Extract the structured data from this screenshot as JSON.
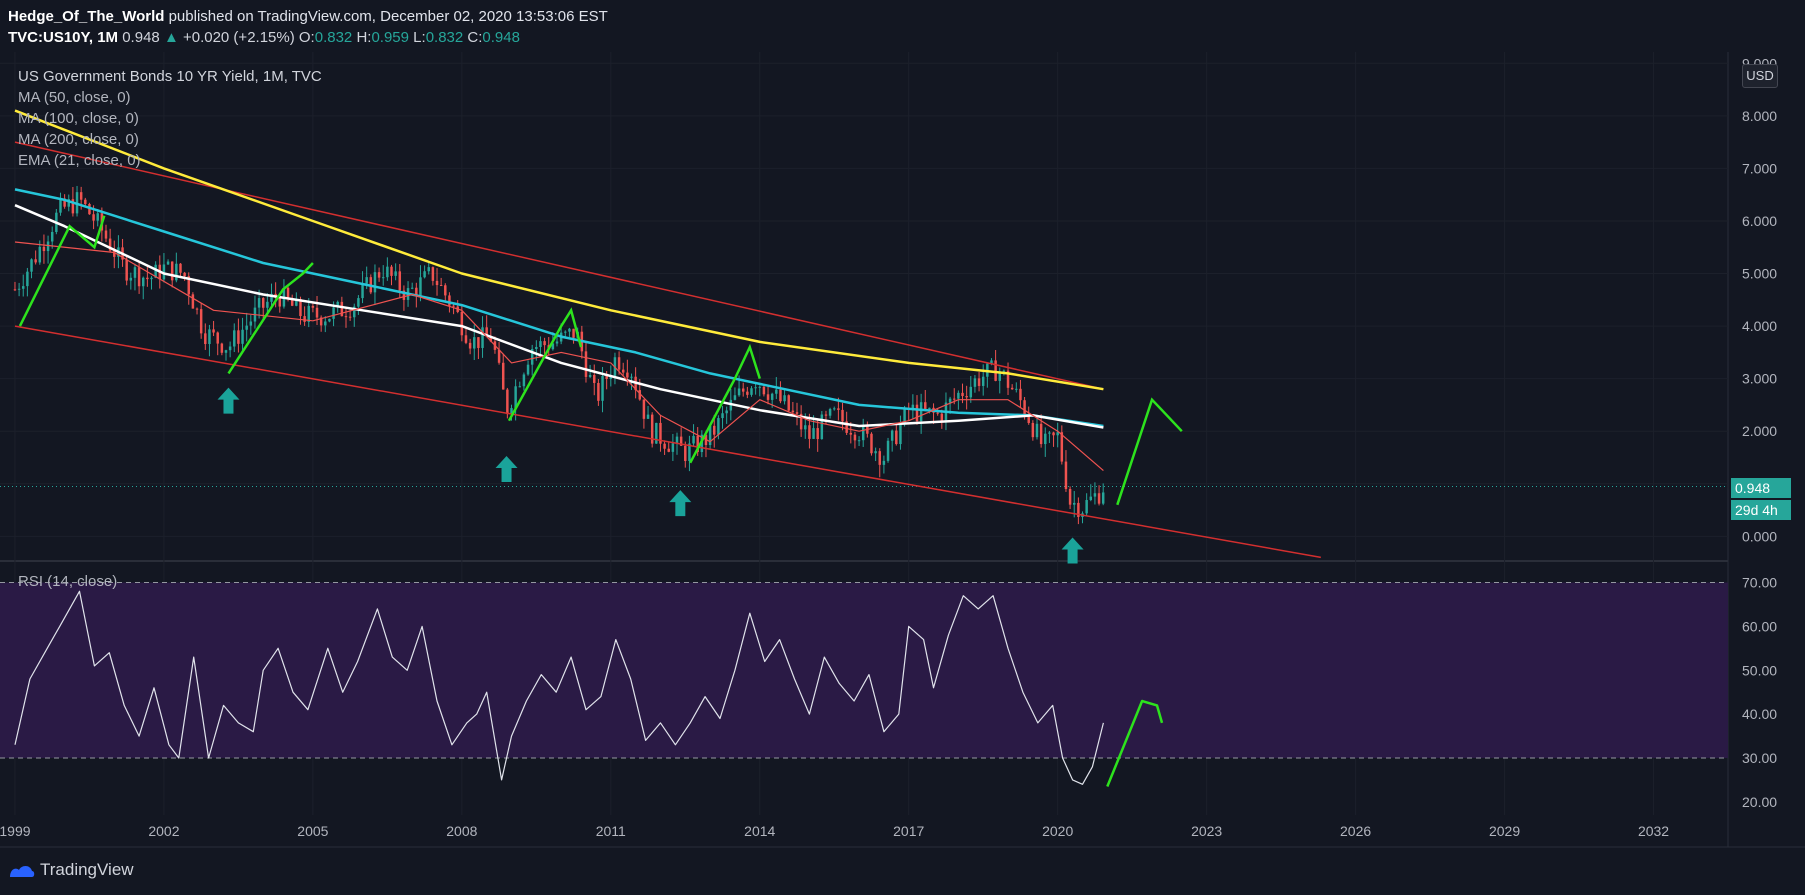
{
  "header": {
    "author": "Hedge_Of_The_World",
    "published": "published on TradingView.com, December 02, 2020 13:53:06 EST",
    "symbol": "TVC:US10Y, 1M",
    "last": "0.948",
    "arrow": "▲",
    "change": "+0.020 (+2.15%)",
    "o_label": "O:",
    "o_value": "0.832",
    "h_label": "H:",
    "h_value": "0.959",
    "l_label": "L:",
    "l_value": "0.832",
    "c_label": "C:",
    "c_value": "0.948"
  },
  "legend": {
    "title": "US Government Bonds 10 YR Yield, 1M, TVC",
    "ma50": "MA (50, close, 0)",
    "ma100": "MA (100, close, 0)",
    "ma200": "MA (200, close, 0)",
    "ema21": "EMA (21, close, 0)"
  },
  "badges": {
    "currency": "USD",
    "price": "0.948",
    "countdown": "29d 4h"
  },
  "rsi_label": "RSI (14, close)",
  "footer": {
    "brand": "TradingView"
  },
  "colors": {
    "background": "#131722",
    "up": "#26a69a",
    "down": "#ef5350",
    "ma50": "#ef5350",
    "ma100": "#ffffff",
    "ma200": "#ffeb3b",
    "ema21": "#26c6da",
    "channel": "#d32f2f",
    "annotation": "#2de31d",
    "rsi_band": "#2a1a45"
  },
  "chart_data": [
    {
      "type": "candlestick",
      "title": "US Government Bonds 10 YR Yield, 1M, TVC",
      "x_tick_labels": [
        "1999",
        "2002",
        "2005",
        "2008",
        "2011",
        "2014",
        "2017",
        "2020",
        "2023",
        "2026",
        "2029",
        "2032"
      ],
      "x_ticks": [
        1999,
        2002,
        2005,
        2008,
        2011,
        2014,
        2017,
        2020,
        2023,
        2026,
        2029,
        2032
      ],
      "y_tick_labels": [
        "0.000",
        "1.000",
        "2.000",
        "3.000",
        "4.000",
        "5.000",
        "6.000",
        "7.000",
        "8.000",
        "9.000"
      ],
      "y_ticks": [
        0,
        1,
        2,
        3,
        4,
        5,
        6,
        7,
        8,
        9
      ],
      "xlim": [
        1998.9,
        2033.5
      ],
      "ylim": [
        -0.45,
        9.1
      ],
      "close_path": [
        [
          1999.0,
          4.7
        ],
        [
          1999.4,
          5.3
        ],
        [
          1999.9,
          6.2
        ],
        [
          2000.3,
          6.4
        ],
        [
          2000.7,
          5.9
        ],
        [
          2001.2,
          5.1
        ],
        [
          2001.7,
          4.9
        ],
        [
          2002.0,
          5.1
        ],
        [
          2002.4,
          5.0
        ],
        [
          2002.8,
          3.9
        ],
        [
          2003.3,
          3.6
        ],
        [
          2003.9,
          4.3
        ],
        [
          2004.3,
          4.6
        ],
        [
          2004.8,
          4.2
        ],
        [
          2005.3,
          4.2
        ],
        [
          2005.8,
          4.4
        ],
        [
          2006.4,
          5.1
        ],
        [
          2006.9,
          4.6
        ],
        [
          2007.4,
          5.0
        ],
        [
          2007.8,
          4.4
        ],
        [
          2008.2,
          3.7
        ],
        [
          2008.6,
          3.8
        ],
        [
          2008.9,
          2.4
        ],
        [
          2009.4,
          3.6
        ],
        [
          2009.9,
          3.7
        ],
        [
          2010.3,
          3.9
        ],
        [
          2010.7,
          2.6
        ],
        [
          2011.1,
          3.4
        ],
        [
          2011.4,
          3.2
        ],
        [
          2011.8,
          2.0
        ],
        [
          2012.5,
          1.6
        ],
        [
          2013.0,
          1.9
        ],
        [
          2013.5,
          2.6
        ],
        [
          2013.9,
          3.0
        ],
        [
          2014.5,
          2.5
        ],
        [
          2015.0,
          1.9
        ],
        [
          2015.5,
          2.3
        ],
        [
          2016.0,
          2.0
        ],
        [
          2016.5,
          1.5
        ],
        [
          2017.0,
          2.4
        ],
        [
          2017.6,
          2.3
        ],
        [
          2018.0,
          2.7
        ],
        [
          2018.4,
          3.0
        ],
        [
          2018.8,
          3.2
        ],
        [
          2019.3,
          2.5
        ],
        [
          2019.7,
          1.7
        ],
        [
          2020.0,
          1.9
        ],
        [
          2020.25,
          0.67
        ],
        [
          2020.5,
          0.55
        ],
        [
          2020.83,
          0.83
        ],
        [
          2020.92,
          0.948
        ]
      ],
      "sma50": [
        [
          1999.0,
          5.6
        ],
        [
          2001.0,
          5.4
        ],
        [
          2003.0,
          4.3
        ],
        [
          2005.0,
          4.1
        ],
        [
          2007.0,
          4.6
        ],
        [
          2008.0,
          4.3
        ],
        [
          2009.0,
          3.3
        ],
        [
          2010.0,
          3.5
        ],
        [
          2011.0,
          3.3
        ],
        [
          2012.0,
          2.3
        ],
        [
          2013.0,
          1.8
        ],
        [
          2014.0,
          2.6
        ],
        [
          2015.0,
          2.2
        ],
        [
          2016.0,
          2.0
        ],
        [
          2017.0,
          2.2
        ],
        [
          2018.0,
          2.6
        ],
        [
          2019.0,
          2.6
        ],
        [
          2020.0,
          2.0
        ],
        [
          2020.92,
          1.25
        ]
      ],
      "sma100": [
        [
          1999.0,
          6.3
        ],
        [
          2000.0,
          5.9
        ],
        [
          2002.0,
          5.0
        ],
        [
          2004.0,
          4.6
        ],
        [
          2006.0,
          4.3
        ],
        [
          2008.0,
          4.0
        ],
        [
          2010.0,
          3.3
        ],
        [
          2012.0,
          2.8
        ],
        [
          2014.0,
          2.4
        ],
        [
          2016.0,
          2.1
        ],
        [
          2018.0,
          2.2
        ],
        [
          2019.5,
          2.3
        ],
        [
          2020.92,
          2.07
        ]
      ],
      "sma200": [
        [
          1999.0,
          8.1
        ],
        [
          2002.0,
          7.0
        ],
        [
          2005.0,
          6.0
        ],
        [
          2008.0,
          5.0
        ],
        [
          2011.0,
          4.3
        ],
        [
          2014.0,
          3.7
        ],
        [
          2017.0,
          3.3
        ],
        [
          2019.0,
          3.1
        ],
        [
          2020.92,
          2.8
        ]
      ],
      "ema21": [
        [
          1999.0,
          6.6
        ],
        [
          2000.0,
          6.4
        ],
        [
          2002.0,
          5.8
        ],
        [
          2004.0,
          5.2
        ],
        [
          2006.0,
          4.8
        ],
        [
          2008.0,
          4.4
        ],
        [
          2010.0,
          3.8
        ],
        [
          2011.5,
          3.5
        ],
        [
          2013.0,
          3.1
        ],
        [
          2014.0,
          2.9
        ],
        [
          2016.0,
          2.5
        ],
        [
          2018.0,
          2.35
        ],
        [
          2019.5,
          2.3
        ],
        [
          2020.92,
          2.1
        ]
      ],
      "channel_upper": [
        [
          1999.0,
          7.5
        ],
        [
          2020.92,
          2.8
        ]
      ],
      "channel_lower": [
        [
          1999.0,
          4.0
        ],
        [
          2025.3,
          -0.4
        ]
      ],
      "annotations": {
        "up_markers": [
          [
            2003.3,
            2.6
          ],
          [
            2008.9,
            1.3
          ],
          [
            2012.4,
            0.65
          ],
          [
            2020.3,
            -0.25
          ]
        ],
        "green_zigzags": [
          [
            [
              1999.1,
              4.0
            ],
            [
              2000.1,
              5.9
            ],
            [
              2000.6,
              5.5
            ],
            [
              2000.8,
              6.1
            ]
          ],
          [
            [
              2003.3,
              3.1
            ],
            [
              2004.4,
              4.7
            ],
            [
              2004.8,
              5.0
            ],
            [
              2005.0,
              5.2
            ]
          ],
          [
            [
              2008.95,
              2.2
            ],
            [
              2010.0,
              4.0
            ],
            [
              2010.2,
              4.3
            ],
            [
              2010.4,
              3.6
            ]
          ],
          [
            [
              2012.6,
              1.4
            ],
            [
              2013.5,
              3.0
            ],
            [
              2013.8,
              3.6
            ],
            [
              2014.0,
              3.0
            ]
          ],
          [
            [
              2021.2,
              0.6
            ],
            [
              2021.9,
              2.6
            ],
            [
              2022.1,
              2.4
            ],
            [
              2022.5,
              2.0
            ]
          ]
        ]
      }
    },
    {
      "type": "line",
      "title": "RSI (14, close)",
      "y_tick_labels": [
        "20.00",
        "30.00",
        "40.00",
        "50.00",
        "60.00",
        "70.00"
      ],
      "y_ticks": [
        20,
        30,
        40,
        50,
        60,
        70
      ],
      "ylim": [
        17,
        74
      ],
      "levels": [
        30,
        70
      ],
      "series": [
        [
          1999.0,
          33
        ],
        [
          1999.3,
          48
        ],
        [
          1999.7,
          56
        ],
        [
          1999.9,
          60
        ],
        [
          2000.3,
          68
        ],
        [
          2000.6,
          51
        ],
        [
          2000.9,
          54
        ],
        [
          2001.2,
          42
        ],
        [
          2001.5,
          35
        ],
        [
          2001.8,
          46
        ],
        [
          2002.1,
          33
        ],
        [
          2002.3,
          30
        ],
        [
          2002.6,
          53
        ],
        [
          2002.9,
          30
        ],
        [
          2003.2,
          42
        ],
        [
          2003.5,
          38
        ],
        [
          2003.8,
          36
        ],
        [
          2004.0,
          50
        ],
        [
          2004.3,
          55
        ],
        [
          2004.6,
          45
        ],
        [
          2004.9,
          41
        ],
        [
          2005.3,
          55
        ],
        [
          2005.6,
          45
        ],
        [
          2005.9,
          52
        ],
        [
          2006.3,
          64
        ],
        [
          2006.6,
          53
        ],
        [
          2006.9,
          50
        ],
        [
          2007.2,
          60
        ],
        [
          2007.5,
          43
        ],
        [
          2007.8,
          33
        ],
        [
          2008.1,
          38
        ],
        [
          2008.3,
          40
        ],
        [
          2008.5,
          45
        ],
        [
          2008.8,
          25
        ],
        [
          2009.0,
          35
        ],
        [
          2009.3,
          43
        ],
        [
          2009.6,
          49
        ],
        [
          2009.9,
          45
        ],
        [
          2010.2,
          53
        ],
        [
          2010.5,
          41
        ],
        [
          2010.8,
          44
        ],
        [
          2011.1,
          57
        ],
        [
          2011.4,
          48
        ],
        [
          2011.7,
          34
        ],
        [
          2012.0,
          38
        ],
        [
          2012.3,
          33
        ],
        [
          2012.6,
          38
        ],
        [
          2012.9,
          44
        ],
        [
          2013.2,
          39
        ],
        [
          2013.5,
          50
        ],
        [
          2013.8,
          63
        ],
        [
          2014.1,
          52
        ],
        [
          2014.4,
          57
        ],
        [
          2014.7,
          48
        ],
        [
          2015.0,
          40
        ],
        [
          2015.3,
          53
        ],
        [
          2015.6,
          47
        ],
        [
          2015.9,
          43
        ],
        [
          2016.2,
          49
        ],
        [
          2016.5,
          36
        ],
        [
          2016.8,
          40
        ],
        [
          2017.0,
          60
        ],
        [
          2017.3,
          57
        ],
        [
          2017.5,
          46
        ],
        [
          2017.8,
          58
        ],
        [
          2018.1,
          67
        ],
        [
          2018.4,
          64
        ],
        [
          2018.7,
          67
        ],
        [
          2019.0,
          55
        ],
        [
          2019.3,
          45
        ],
        [
          2019.6,
          38
        ],
        [
          2019.9,
          42
        ],
        [
          2020.1,
          30
        ],
        [
          2020.3,
          25
        ],
        [
          2020.5,
          24
        ],
        [
          2020.7,
          28
        ],
        [
          2020.92,
          38
        ]
      ]
    }
  ]
}
